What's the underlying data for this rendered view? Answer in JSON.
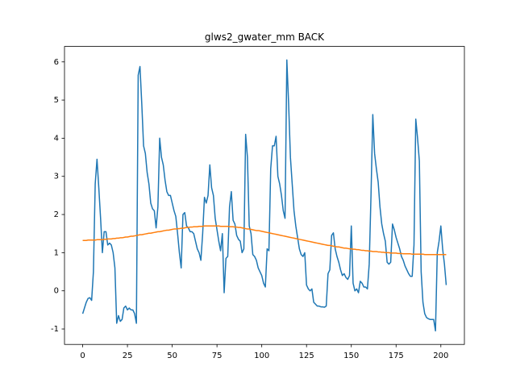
{
  "chart_data": {
    "type": "line",
    "title": "glws2_gwater_mm BACK",
    "x": [
      0,
      1,
      2,
      3,
      4,
      5,
      6,
      7,
      8,
      9,
      10,
      11,
      12,
      13,
      14,
      15,
      16,
      17,
      18,
      19,
      20,
      21,
      22,
      23,
      24,
      25,
      26,
      27,
      28,
      29,
      30,
      31,
      32,
      33,
      34,
      35,
      36,
      37,
      38,
      39,
      40,
      41,
      42,
      43,
      44,
      45,
      46,
      47,
      48,
      49,
      50,
      51,
      52,
      53,
      54,
      55,
      56,
      57,
      58,
      59,
      60,
      61,
      62,
      63,
      64,
      65,
      66,
      67,
      68,
      69,
      70,
      71,
      72,
      73,
      74,
      75,
      76,
      77,
      78,
      79,
      80,
      81,
      82,
      83,
      84,
      85,
      86,
      87,
      88,
      89,
      90,
      91,
      92,
      93,
      94,
      95,
      96,
      97,
      98,
      99,
      100,
      101,
      102,
      103,
      104,
      105,
      106,
      107,
      108,
      109,
      110,
      111,
      112,
      113,
      114,
      115,
      116,
      117,
      118,
      119,
      120,
      121,
      122,
      123,
      124,
      125,
      126,
      127,
      128,
      129,
      130,
      131,
      132,
      133,
      134,
      135,
      136,
      137,
      138,
      139,
      140,
      141,
      142,
      143,
      144,
      145,
      146,
      147,
      148,
      149,
      150,
      151,
      152,
      153,
      154,
      155,
      156,
      157,
      158,
      159,
      160,
      161,
      162,
      163,
      164,
      165,
      166,
      167,
      168,
      169,
      170,
      171,
      172,
      173,
      174,
      175,
      176,
      177,
      178,
      179,
      180,
      181,
      182,
      183,
      184,
      185,
      186,
      187,
      188,
      189,
      190,
      191,
      192,
      193,
      194,
      195,
      196,
      197,
      198,
      199,
      200,
      201,
      202,
      203
    ],
    "series": [
      {
        "color": "#1f77b4",
        "values": [
          -0.6,
          -0.45,
          -0.3,
          -0.2,
          -0.18,
          -0.25,
          0.5,
          2.8,
          3.45,
          2.7,
          1.9,
          1.0,
          1.55,
          1.55,
          1.2,
          1.25,
          1.2,
          1.0,
          0.6,
          -0.85,
          -0.65,
          -0.8,
          -0.75,
          -0.45,
          -0.4,
          -0.5,
          -0.45,
          -0.5,
          -0.5,
          -0.6,
          -0.85,
          5.65,
          5.88,
          4.9,
          3.8,
          3.6,
          3.1,
          2.8,
          2.3,
          2.15,
          2.1,
          1.65,
          2.2,
          4.0,
          3.5,
          3.3,
          2.9,
          2.6,
          2.5,
          2.5,
          2.3,
          2.1,
          1.95,
          1.5,
          1.0,
          0.6,
          2.0,
          2.05,
          1.7,
          1.65,
          1.55,
          1.55,
          1.5,
          1.3,
          1.1,
          1.0,
          0.8,
          1.5,
          2.45,
          2.3,
          2.5,
          3.3,
          2.7,
          2.5,
          1.9,
          1.6,
          1.3,
          1.05,
          1.5,
          -0.05,
          0.85,
          0.9,
          2.2,
          2.6,
          1.85,
          1.75,
          1.45,
          1.35,
          1.3,
          1.0,
          1.1,
          4.1,
          3.5,
          1.7,
          1.5,
          0.95,
          0.9,
          0.8,
          0.6,
          0.5,
          0.4,
          0.2,
          0.1,
          1.1,
          1.05,
          3.2,
          3.8,
          3.8,
          4.05,
          3.0,
          2.8,
          2.5,
          2.1,
          1.9,
          6.05,
          4.9,
          3.5,
          2.8,
          2.1,
          1.7,
          1.4,
          1.1,
          0.95,
          0.9,
          1.0,
          0.15,
          0.05,
          0.0,
          0.05,
          -0.3,
          -0.35,
          -0.4,
          -0.4,
          -0.42,
          -0.42,
          -0.43,
          -0.4,
          0.45,
          0.55,
          1.45,
          1.52,
          1.1,
          0.9,
          0.75,
          0.55,
          0.4,
          0.45,
          0.35,
          0.3,
          0.4,
          1.7,
          0.2,
          0.0,
          0.05,
          -0.05,
          0.25,
          0.2,
          0.1,
          0.1,
          0.05,
          0.7,
          2.5,
          4.62,
          3.6,
          3.2,
          2.85,
          2.2,
          1.75,
          1.5,
          1.3,
          0.75,
          0.7,
          0.75,
          1.75,
          1.6,
          1.4,
          1.25,
          1.1,
          0.9,
          0.8,
          0.65,
          0.55,
          0.45,
          0.38,
          0.38,
          1.2,
          4.5,
          4.0,
          3.4,
          0.5,
          -0.3,
          -0.6,
          -0.7,
          -0.73,
          -0.75,
          -0.75,
          -0.75,
          -1.05,
          1.0,
          1.3,
          1.7,
          1.1,
          0.7,
          0.15
        ]
      },
      {
        "color": "#ff7f0e",
        "values": [
          1.32,
          1.32,
          1.32,
          1.33,
          1.33,
          1.33,
          1.33,
          1.33,
          1.34,
          1.34,
          1.34,
          1.34,
          1.35,
          1.35,
          1.36,
          1.36,
          1.36,
          1.37,
          1.37,
          1.38,
          1.38,
          1.39,
          1.39,
          1.4,
          1.41,
          1.41,
          1.42,
          1.43,
          1.43,
          1.44,
          1.45,
          1.46,
          1.47,
          1.47,
          1.48,
          1.49,
          1.5,
          1.51,
          1.51,
          1.52,
          1.53,
          1.54,
          1.55,
          1.55,
          1.56,
          1.57,
          1.58,
          1.59,
          1.59,
          1.6,
          1.61,
          1.62,
          1.62,
          1.63,
          1.63,
          1.64,
          1.64,
          1.65,
          1.66,
          1.66,
          1.67,
          1.67,
          1.68,
          1.68,
          1.68,
          1.69,
          1.69,
          1.69,
          1.7,
          1.7,
          1.7,
          1.7,
          1.7,
          1.7,
          1.7,
          1.7,
          1.7,
          1.69,
          1.69,
          1.69,
          1.69,
          1.69,
          1.68,
          1.68,
          1.68,
          1.67,
          1.67,
          1.66,
          1.66,
          1.65,
          1.64,
          1.63,
          1.62,
          1.62,
          1.61,
          1.6,
          1.59,
          1.58,
          1.58,
          1.57,
          1.56,
          1.55,
          1.54,
          1.53,
          1.52,
          1.51,
          1.5,
          1.49,
          1.48,
          1.47,
          1.46,
          1.45,
          1.44,
          1.43,
          1.42,
          1.41,
          1.4,
          1.39,
          1.38,
          1.37,
          1.36,
          1.35,
          1.34,
          1.33,
          1.32,
          1.31,
          1.3,
          1.29,
          1.28,
          1.27,
          1.26,
          1.25,
          1.24,
          1.23,
          1.22,
          1.21,
          1.2,
          1.19,
          1.19,
          1.18,
          1.17,
          1.16,
          1.15,
          1.15,
          1.14,
          1.13,
          1.12,
          1.12,
          1.11,
          1.1,
          1.1,
          1.09,
          1.09,
          1.08,
          1.08,
          1.07,
          1.06,
          1.06,
          1.05,
          1.05,
          1.04,
          1.04,
          1.03,
          1.03,
          1.03,
          1.02,
          1.02,
          1.01,
          1.01,
          1.0,
          1.0,
          1.0,
          0.99,
          0.99,
          0.99,
          0.99,
          0.98,
          0.98,
          0.98,
          0.97,
          0.97,
          0.97,
          0.97,
          0.97,
          0.96,
          0.96,
          0.96,
          0.96,
          0.96,
          0.96,
          0.96,
          0.95,
          0.95,
          0.95,
          0.95,
          0.95,
          0.95,
          0.95,
          0.95,
          0.95,
          0.95,
          0.95,
          0.95,
          0.95
        ]
      }
    ],
    "xlim": [
      -10.15,
      213.15
    ],
    "xticks": [
      0,
      25,
      50,
      75,
      100,
      125,
      150,
      175,
      200
    ],
    "ylim": [
      -1.405,
      6.405
    ],
    "yticks": [
      -1,
      0,
      1,
      2,
      3,
      4,
      5,
      6
    ]
  }
}
